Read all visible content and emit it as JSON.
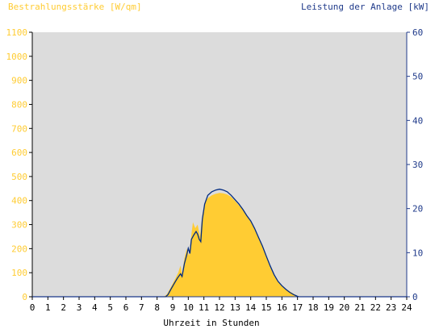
{
  "chart_data": {
    "type": "area",
    "left_axis_title": "Bestrahlungsstärke [W/qm]",
    "right_axis_title": "Leistung der Anlage [kW]",
    "xlabel": "Uhrzeit in Stunden",
    "x_range": [
      0,
      24
    ],
    "x_ticks": [
      "0",
      "1",
      "2",
      "3",
      "4",
      "5",
      "6",
      "7",
      "8",
      "9",
      "10",
      "11",
      "12",
      "13",
      "14",
      "15",
      "16",
      "17",
      "18",
      "19",
      "20",
      "21",
      "22",
      "23",
      "24"
    ],
    "y_left_range": [
      0,
      1100
    ],
    "y_left_ticks": [
      "0",
      "100",
      "200",
      "300",
      "400",
      "500",
      "600",
      "700",
      "800",
      "900",
      "1000",
      "1100"
    ],
    "y_right_range": [
      0,
      60
    ],
    "y_right_ticks": [
      "0",
      "10",
      "20",
      "30",
      "40",
      "50",
      "60"
    ],
    "grid": false,
    "colors": {
      "irradiance": "#ffcc33",
      "power": "#002a80",
      "plot_bg": "#dcdcdc",
      "left_axis": "#ffcc33",
      "right_axis": "#1f3a8a"
    },
    "series": [
      {
        "axis": "left",
        "style": "filled-area",
        "points": [
          [
            0,
            0
          ],
          [
            8.4,
            0
          ],
          [
            8.6,
            8
          ],
          [
            8.8,
            30
          ],
          [
            9.0,
            55
          ],
          [
            9.2,
            80
          ],
          [
            9.35,
            100
          ],
          [
            9.5,
            130
          ],
          [
            9.6,
            95
          ],
          [
            9.75,
            160
          ],
          [
            9.9,
            200
          ],
          [
            10.05,
            170
          ],
          [
            10.2,
            260
          ],
          [
            10.3,
            310
          ],
          [
            10.45,
            285
          ],
          [
            10.6,
            300
          ],
          [
            10.75,
            250
          ],
          [
            10.9,
            340
          ],
          [
            11.05,
            390
          ],
          [
            11.25,
            410
          ],
          [
            11.5,
            422
          ],
          [
            11.75,
            428
          ],
          [
            12.0,
            432
          ],
          [
            12.25,
            430
          ],
          [
            12.5,
            425
          ],
          [
            12.75,
            415
          ],
          [
            13.0,
            398
          ],
          [
            13.25,
            380
          ],
          [
            13.5,
            362
          ],
          [
            13.75,
            340
          ],
          [
            14.0,
            312
          ],
          [
            14.25,
            285
          ],
          [
            14.5,
            248
          ],
          [
            14.75,
            210
          ],
          [
            15.0,
            165
          ],
          [
            15.25,
            122
          ],
          [
            15.5,
            88
          ],
          [
            15.75,
            62
          ],
          [
            16.0,
            45
          ],
          [
            16.25,
            32
          ],
          [
            16.5,
            22
          ],
          [
            16.75,
            12
          ],
          [
            17.0,
            3
          ],
          [
            17.15,
            0
          ],
          [
            24,
            0
          ]
        ]
      },
      {
        "axis": "right",
        "style": "line",
        "points": [
          [
            0,
            0
          ],
          [
            8.55,
            0
          ],
          [
            8.7,
            0.5
          ],
          [
            8.9,
            1.8
          ],
          [
            9.1,
            3.0
          ],
          [
            9.3,
            4.2
          ],
          [
            9.5,
            5.2
          ],
          [
            9.6,
            4.6
          ],
          [
            9.75,
            7.5
          ],
          [
            9.9,
            9.5
          ],
          [
            10.0,
            11.0
          ],
          [
            10.1,
            9.8
          ],
          [
            10.2,
            13.0
          ],
          [
            10.35,
            14.0
          ],
          [
            10.5,
            14.8
          ],
          [
            10.6,
            14.2
          ],
          [
            10.7,
            13.0
          ],
          [
            10.8,
            12.5
          ],
          [
            10.9,
            17.5
          ],
          [
            11.05,
            21.0
          ],
          [
            11.25,
            23.0
          ],
          [
            11.5,
            23.8
          ],
          [
            11.75,
            24.2
          ],
          [
            12.0,
            24.4
          ],
          [
            12.25,
            24.2
          ],
          [
            12.5,
            23.8
          ],
          [
            12.75,
            23.0
          ],
          [
            13.0,
            22.0
          ],
          [
            13.25,
            21.0
          ],
          [
            13.5,
            19.8
          ],
          [
            13.75,
            18.4
          ],
          [
            14.0,
            17.2
          ],
          [
            14.25,
            15.5
          ],
          [
            14.5,
            13.5
          ],
          [
            14.75,
            11.5
          ],
          [
            15.0,
            9.2
          ],
          [
            15.25,
            7.0
          ],
          [
            15.5,
            5.0
          ],
          [
            15.75,
            3.5
          ],
          [
            16.0,
            2.5
          ],
          [
            16.25,
            1.7
          ],
          [
            16.5,
            1.0
          ],
          [
            16.75,
            0.5
          ],
          [
            17.0,
            0.1
          ],
          [
            17.1,
            0
          ],
          [
            24,
            0
          ]
        ]
      }
    ]
  }
}
